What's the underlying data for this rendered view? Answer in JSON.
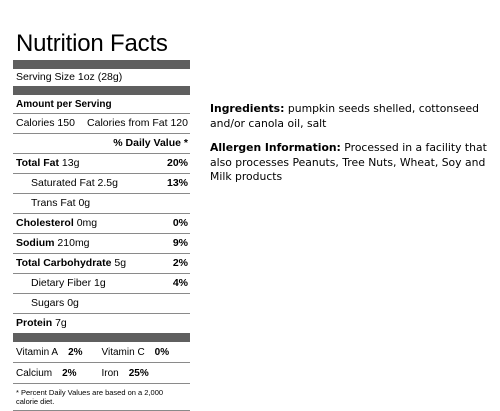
{
  "label": {
    "title": "Nutrition Facts",
    "serving_size": "Serving Size  1oz (28g)",
    "amount_per_serving": "Amount per Serving",
    "calories": "Calories  150",
    "calories_from_fat": "Calories from Fat  120",
    "daily_value_header": "% Daily Value *",
    "nutrients": [
      {
        "name": "Total Fat",
        "amount": "13g",
        "dv": "20%",
        "bold": true,
        "indent": false
      },
      {
        "name": "Saturated Fat",
        "amount": "2.5g",
        "dv": "13%",
        "bold": false,
        "indent": true
      },
      {
        "name": "Trans Fat",
        "amount": "0g",
        "dv": "",
        "bold": false,
        "indent": true
      },
      {
        "name": "Cholesterol",
        "amount": "0mg",
        "dv": "0%",
        "bold": true,
        "indent": false
      },
      {
        "name": "Sodium",
        "amount": "210mg",
        "dv": "9%",
        "bold": true,
        "indent": false
      },
      {
        "name": "Total Carbohydrate",
        "amount": "5g",
        "dv": "2%",
        "bold": true,
        "indent": false
      },
      {
        "name": "Dietary Fiber",
        "amount": "1g",
        "dv": "4%",
        "bold": false,
        "indent": true
      },
      {
        "name": "Sugars",
        "amount": "0g",
        "dv": "",
        "bold": false,
        "indent": true
      },
      {
        "name": "Protein",
        "amount": "7g",
        "dv": "",
        "bold": true,
        "indent": false
      }
    ],
    "vitamins": [
      [
        {
          "name": "Vitamin A",
          "value": "2%"
        },
        {
          "name": "Vitamin C",
          "value": "0%"
        }
      ],
      [
        {
          "name": "Calcium",
          "value": "2%"
        },
        {
          "name": "Iron",
          "value": "25%"
        }
      ]
    ],
    "footnote": "* Percent Daily Values are based on a 2,000 calorie diet."
  },
  "ingredients": {
    "label": "Ingredients:",
    "text": " pumpkin seeds shelled, cottonseed and/or canola oil, salt"
  },
  "allergen": {
    "label": "Allergen Information:",
    "text": " Processed in a facility that also processes Peanuts, Tree Nuts, Wheat, Soy and Milk products"
  }
}
